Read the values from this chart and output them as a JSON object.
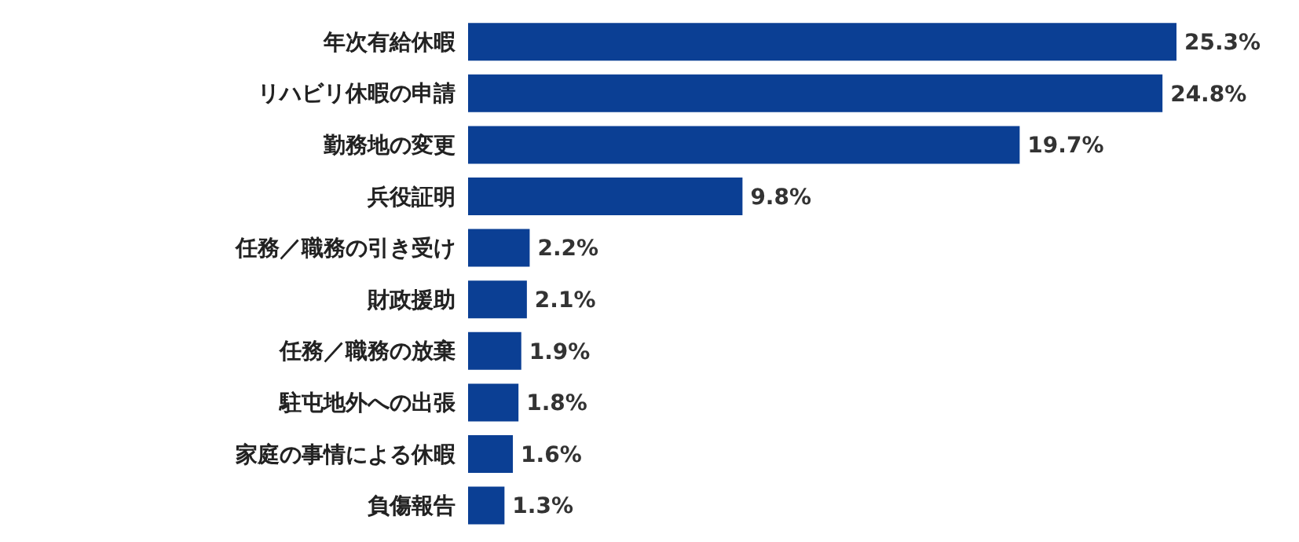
{
  "chart_data": {
    "type": "bar",
    "orientation": "horizontal",
    "categories": [
      "年次有給休暇",
      "リハビリ休暇の申請",
      "勤務地の変更",
      "兵役証明",
      "任務／職務の引き受け",
      "財政援助",
      "任務／職務の放棄",
      "駐屯地外への出張",
      "家庭の事情による休暇",
      "負傷報告"
    ],
    "values": [
      25.3,
      24.8,
      19.7,
      9.8,
      2.2,
      2.1,
      1.9,
      1.8,
      1.6,
      1.3
    ],
    "value_labels": [
      "25.3%",
      "24.8%",
      "19.7%",
      "9.8%",
      "2.2%",
      "2.1%",
      "1.9%",
      "1.8%",
      "1.6%",
      "1.3%"
    ],
    "color": "#0b3f94",
    "grid": false,
    "legend": false
  }
}
